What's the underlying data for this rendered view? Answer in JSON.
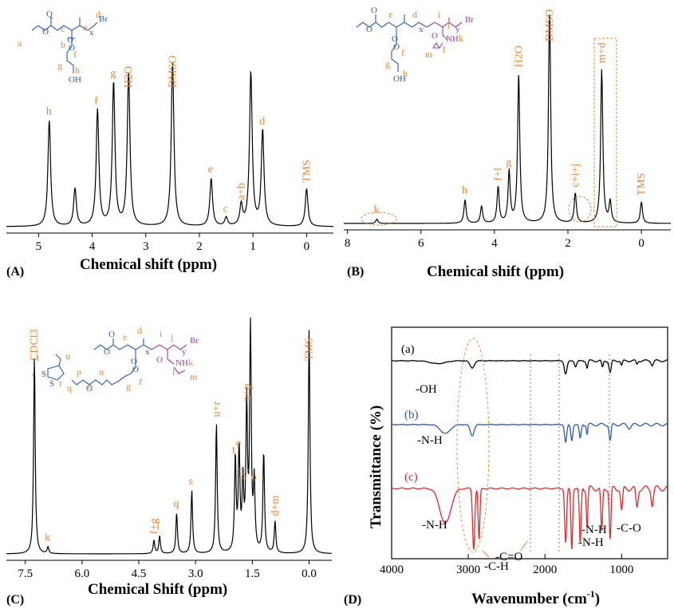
{
  "panels": {
    "A": {
      "label": "(A)",
      "xlabel": "Chemical shift  (ppm)",
      "ticks": [
        "5",
        "4",
        "3",
        "2",
        "1",
        "0"
      ],
      "peaks": [
        {
          "label": "h",
          "ppm": 4.8,
          "height": 0.62
        },
        {
          "label": "",
          "ppm": 4.32,
          "height": 0.22
        },
        {
          "label": "f",
          "ppm": 3.9,
          "height": 0.68
        },
        {
          "label": "g",
          "ppm": 3.6,
          "height": 0.84
        },
        {
          "label": "H2O",
          "ppm": 3.32,
          "height": 0.9
        },
        {
          "label": "DMSO",
          "ppm": 2.5,
          "height": 0.96
        },
        {
          "label": "e",
          "ppm": 1.78,
          "height": 0.28
        },
        {
          "label": "c",
          "ppm": 1.5,
          "height": 0.05
        },
        {
          "label": "a+b",
          "ppm": 1.22,
          "height": 0.12
        },
        {
          "label": "",
          "ppm": 1.04,
          "height": 0.9
        },
        {
          "label": "d",
          "ppm": 0.82,
          "height": 0.56
        },
        {
          "label": "TMS",
          "ppm": 0.0,
          "height": 0.22
        }
      ],
      "structure_labels": [
        "a",
        "b",
        "c",
        "d",
        "e",
        "f",
        "g",
        "h"
      ],
      "structure_text": {
        "br": "Br",
        "oh": "OH",
        "x": "x"
      },
      "h2o": "H2O"
    },
    "B": {
      "label": "(B)",
      "xlabel": "Chemical shift  (ppm)",
      "ticks": [
        "8",
        "6",
        "4",
        "2",
        "0"
      ],
      "peaks": [
        {
          "label": "k",
          "ppm": 7.2,
          "height": 0.02
        },
        {
          "label": "h",
          "ppm": 4.8,
          "height": 0.11
        },
        {
          "label": "",
          "ppm": 4.35,
          "height": 0.08
        },
        {
          "label": "f+l",
          "ppm": 3.9,
          "height": 0.17
        },
        {
          "label": "g",
          "ppm": 3.6,
          "height": 0.24
        },
        {
          "label": "H2O",
          "ppm": 3.34,
          "height": 0.7
        },
        {
          "label": "DMSO",
          "ppm": 2.5,
          "height": 1.0
        },
        {
          "label": "c+i+j",
          "ppm": 1.8,
          "height": 0.14
        },
        {
          "label": "m+d",
          "ppm": 1.08,
          "height": 0.72
        },
        {
          "label": "",
          "ppm": 0.85,
          "height": 0.1
        },
        {
          "label": "TMS",
          "ppm": 0.0,
          "height": 0.1
        }
      ],
      "structure_labels": [
        "e",
        "d",
        "f",
        "g",
        "h",
        "i",
        "j",
        "k",
        "l",
        "m"
      ],
      "structure_text": {
        "br": "Br",
        "oh": "OH",
        "nh": "NH",
        "x": "x",
        "y": "y"
      },
      "h2o": "H2O"
    },
    "C": {
      "label": "(C)",
      "xlabel": "Chemical Shift  (ppm)",
      "ticks": [
        "7.5",
        "6.0",
        "4.5",
        "3.0",
        "1.5",
        "0.0"
      ],
      "peaks": [
        {
          "label": "CDCl3",
          "ppm": 7.26,
          "height": 0.88
        },
        {
          "label": "k",
          "ppm": 6.9,
          "height": 0.03
        },
        {
          "label": "f+g",
          "ppm": 4.1,
          "height": 0.06
        },
        {
          "label": "l",
          "ppm": 3.95,
          "height": 0.08
        },
        {
          "label": "q",
          "ppm": 3.5,
          "height": 0.18
        },
        {
          "label": "s",
          "ppm": 3.1,
          "height": 0.28
        },
        {
          "label": "u+r",
          "ppm": 2.45,
          "height": 0.58
        },
        {
          "label": "t",
          "ppm": 1.95,
          "height": 0.42
        },
        {
          "label": "e",
          "ppm": 1.85,
          "height": 0.45
        },
        {
          "label": "i+j",
          "ppm": 1.75,
          "height": 0.3
        },
        {
          "label": "n+p",
          "ppm": 1.65,
          "height": 0.65
        },
        {
          "label": "",
          "ppm": 1.55,
          "height": 1.0
        },
        {
          "label": "o",
          "ppm": 1.45,
          "height": 0.3
        },
        {
          "label": "",
          "ppm": 1.2,
          "height": 0.45
        },
        {
          "label": "d+m",
          "ppm": 0.9,
          "height": 0.14
        },
        {
          "label": "TMS",
          "ppm": 0.0,
          "height": 1.0
        }
      ],
      "structure_labels": [
        "e",
        "d",
        "i",
        "j",
        "k",
        "l",
        "m",
        "n",
        "o",
        "p",
        "q",
        "r",
        "s",
        "t",
        "u",
        "f",
        "g"
      ],
      "structure_text": {
        "br": "Br",
        "nh": "NH",
        "x": "x",
        "y": "y",
        "s1": "S",
        "s2": "S"
      }
    },
    "D": {
      "label": "(D)",
      "xlabel": "Wavenumber  (cm",
      "xlabel_sup": "-1",
      "xlabel_close": ")",
      "ylabel": "Transmittance (%)",
      "ticks": [
        "4000",
        "3000",
        "2000",
        "1000"
      ],
      "series": [
        {
          "name": "(a)",
          "color": "#000000"
        },
        {
          "name": "(b)",
          "color": "#2e5aa8"
        },
        {
          "name": "(c)",
          "color": "#e0282a"
        }
      ],
      "annotations": {
        "oh": "-OH",
        "nh_b": "-N-H",
        "nh_c": "-N-H",
        "ch": "-C-H",
        "co": "-C=O",
        "nh1": "-N-H",
        "nh2": "-N-H",
        "c_o": "-C-O"
      }
    }
  },
  "chart_data": [
    {
      "type": "line",
      "title": "",
      "xlabel": "Chemical shift (ppm)",
      "ylabel": "",
      "xlim": [
        5.6,
        -0.5
      ],
      "peaks_ppm": [
        4.8,
        4.32,
        3.9,
        3.6,
        3.32,
        2.5,
        1.78,
        1.5,
        1.22,
        1.04,
        0.82,
        0.0
      ],
      "peak_labels": [
        "h",
        "",
        "f",
        "g",
        "H2O",
        "DMSO",
        "e",
        "c",
        "a+b",
        "",
        "d",
        "TMS"
      ]
    },
    {
      "type": "line",
      "title": "",
      "xlabel": "Chemical shift (ppm)",
      "ylabel": "",
      "xlim": [
        8.1,
        -0.8
      ],
      "peaks_ppm": [
        7.2,
        4.8,
        4.35,
        3.9,
        3.6,
        3.34,
        2.5,
        1.8,
        1.08,
        0.85,
        0.0
      ],
      "peak_labels": [
        "k",
        "h",
        "",
        "f+l",
        "g",
        "H2O",
        "DMSO",
        "c+i+j",
        "m+d",
        "",
        "TMS"
      ]
    },
    {
      "type": "line",
      "title": "",
      "xlabel": "Chemical Shift (ppm)",
      "ylabel": "",
      "xlim": [
        8.0,
        -0.6
      ],
      "peaks_ppm": [
        7.26,
        6.9,
        4.1,
        3.95,
        3.5,
        3.1,
        2.45,
        1.95,
        1.85,
        1.75,
        1.65,
        1.55,
        1.45,
        1.2,
        0.9,
        0.0
      ],
      "peak_labels": [
        "CDCl3",
        "k",
        "f+g",
        "l",
        "q",
        "s",
        "u+r",
        "t",
        "e",
        "i+j",
        "n+p",
        "",
        "o",
        "",
        "d+m",
        "TMS"
      ]
    },
    {
      "type": "line",
      "title": "",
      "xlabel": "Wavenumber (cm-1)",
      "ylabel": "Transmittance (%)",
      "xlim": [
        4000,
        400
      ],
      "series": [
        {
          "name": "(a)",
          "bands_cm": [
            3400,
            2950,
            1730,
            1150
          ],
          "band_labels": [
            "-OH",
            "",
            "",
            ""
          ]
        },
        {
          "name": "(b)",
          "bands_cm": [
            3300,
            2950,
            1730,
            1650,
            1540,
            1150
          ],
          "band_labels": [
            "-N-H",
            "",
            "",
            "",
            "",
            ""
          ]
        },
        {
          "name": "(c)",
          "bands_cm": [
            3300,
            2930,
            2860,
            1730,
            1650,
            1540,
            1150
          ],
          "band_labels": [
            "-N-H",
            "-C-H",
            "",
            "-C=O",
            "-N-H",
            "-N-H",
            "-C-O"
          ]
        }
      ]
    }
  ]
}
